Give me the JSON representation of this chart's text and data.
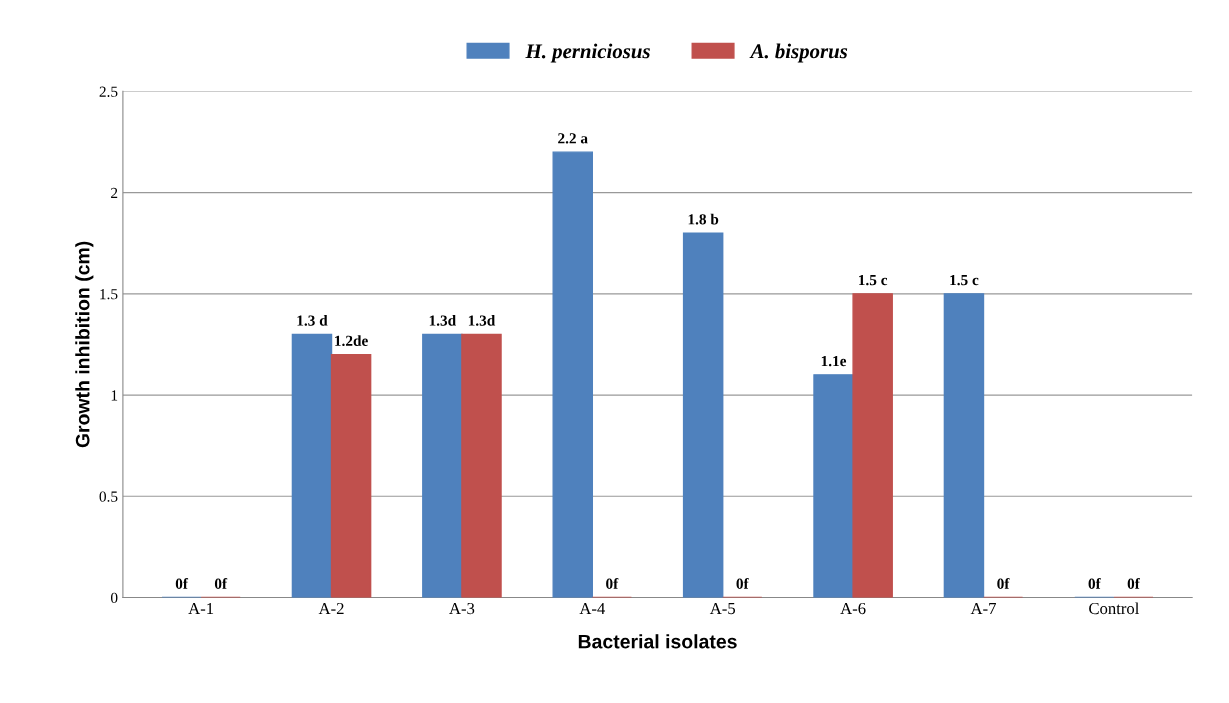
{
  "chart_data": {
    "type": "bar",
    "xlabel": "Bacterial isolates",
    "ylabel": "Growth inhibition (cm)",
    "categories": [
      "A-1",
      "A-2",
      "A-3",
      "A-4",
      "A-5",
      "A-6",
      "A-7",
      "Control"
    ],
    "series": [
      {
        "name": "H. perniciosus",
        "color": "#4f81bd",
        "values": [
          0,
          1.3,
          1.3,
          2.2,
          1.8,
          1.1,
          1.5,
          0
        ],
        "value_labels": [
          "0f",
          "1.3 d",
          "1.3d",
          "2.2 a",
          "1.8 b",
          "1.1e",
          "1.5 c",
          "0f"
        ]
      },
      {
        "name": "A. bisporus",
        "color": "#c0504d",
        "values": [
          0,
          1.2,
          1.3,
          0,
          0,
          1.5,
          0,
          0
        ],
        "value_labels": [
          "0f",
          "1.2de",
          "1.3d",
          "0f",
          "0f",
          "1.5 c",
          "0f",
          "0f"
        ]
      }
    ],
    "ylim": [
      0,
      2.5
    ],
    "yticks": [
      0,
      0.5,
      1,
      1.5,
      2,
      2.5
    ],
    "grid": "y",
    "legend": "top"
  }
}
